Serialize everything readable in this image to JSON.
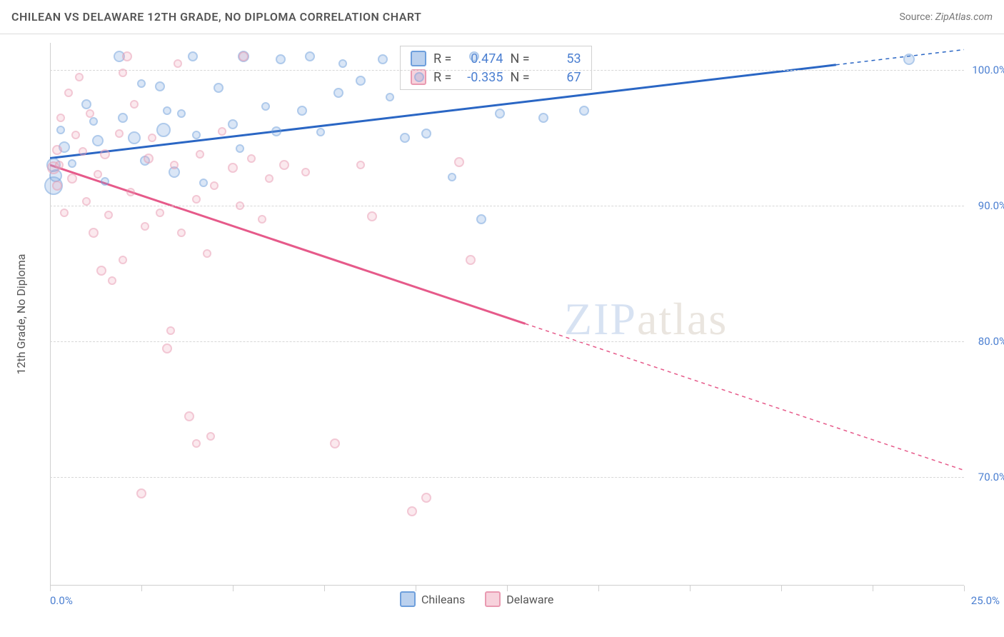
{
  "header": {
    "title": "CHILEAN VS DELAWARE 12TH GRADE, NO DIPLOMA CORRELATION CHART",
    "source_prefix": "Source:",
    "source_name": "ZipAtlas.com"
  },
  "watermark": {
    "part1": "ZIP",
    "part2": "atlas"
  },
  "chart": {
    "type": "scatter",
    "y_axis_label": "12th Grade, No Diploma",
    "xlim": [
      0,
      25
    ],
    "ylim": [
      62,
      102
    ],
    "x_tick_positions": [
      0,
      2.5,
      5,
      7.5,
      10,
      12.5,
      15,
      17.5,
      20,
      22.5,
      25
    ],
    "x_label_min": "0.0%",
    "x_label_max": "25.0%",
    "y_gridlines": [
      70,
      80,
      90,
      100
    ],
    "y_tick_labels": [
      "70.0%",
      "80.0%",
      "90.0%",
      "100.0%"
    ],
    "background": "#ffffff",
    "grid_color": "#d7d7d7",
    "axis_color": "#cfcfcf",
    "tick_label_color": "#4b7fd1",
    "text_color": "#555555",
    "series": [
      {
        "key": "a",
        "label": "Chileans",
        "color_fill": "rgba(120,164,222,0.5)",
        "color_stroke": "#6e9fdc",
        "trend_color": "#2a66c4",
        "trend_width": 3,
        "R": "0.474",
        "N": "53",
        "trend": {
          "x1": 0,
          "y1": 93.5,
          "x2": 25,
          "y2": 101.5,
          "dashed_from_x": 21.5
        },
        "points": [
          {
            "x": 0.1,
            "y": 91.5,
            "r": 13
          },
          {
            "x": 0.1,
            "y": 93,
            "r": 10
          },
          {
            "x": 0.15,
            "y": 92.2,
            "r": 9
          },
          {
            "x": 0.4,
            "y": 94.3,
            "r": 8
          },
          {
            "x": 0.3,
            "y": 95.6,
            "r": 6
          },
          {
            "x": 0.6,
            "y": 93.1,
            "r": 6
          },
          {
            "x": 1.0,
            "y": 97.5,
            "r": 7
          },
          {
            "x": 1.2,
            "y": 96.2,
            "r": 6
          },
          {
            "x": 1.3,
            "y": 94.8,
            "r": 8
          },
          {
            "x": 1.5,
            "y": 91.8,
            "r": 6
          },
          {
            "x": 1.9,
            "y": 101,
            "r": 8
          },
          {
            "x": 2.0,
            "y": 96.5,
            "r": 7
          },
          {
            "x": 2.3,
            "y": 95.0,
            "r": 9
          },
          {
            "x": 2.5,
            "y": 99.0,
            "r": 6
          },
          {
            "x": 2.6,
            "y": 93.3,
            "r": 7
          },
          {
            "x": 3.0,
            "y": 98.8,
            "r": 7
          },
          {
            "x": 3.1,
            "y": 95.6,
            "r": 10
          },
          {
            "x": 3.2,
            "y": 97.0,
            "r": 6
          },
          {
            "x": 3.4,
            "y": 92.5,
            "r": 8
          },
          {
            "x": 3.6,
            "y": 96.8,
            "r": 6
          },
          {
            "x": 3.9,
            "y": 101,
            "r": 7
          },
          {
            "x": 4.0,
            "y": 95.2,
            "r": 6
          },
          {
            "x": 4.2,
            "y": 91.7,
            "r": 6
          },
          {
            "x": 4.6,
            "y": 98.7,
            "r": 7
          },
          {
            "x": 5.0,
            "y": 96.0,
            "r": 7
          },
          {
            "x": 5.2,
            "y": 94.2,
            "r": 6
          },
          {
            "x": 5.3,
            "y": 101,
            "r": 8
          },
          {
            "x": 5.9,
            "y": 97.3,
            "r": 6
          },
          {
            "x": 6.2,
            "y": 95.5,
            "r": 7
          },
          {
            "x": 6.3,
            "y": 100.8,
            "r": 7
          },
          {
            "x": 6.9,
            "y": 97.0,
            "r": 7
          },
          {
            "x": 7.1,
            "y": 101,
            "r": 7
          },
          {
            "x": 7.4,
            "y": 95.4,
            "r": 6
          },
          {
            "x": 7.9,
            "y": 98.3,
            "r": 7
          },
          {
            "x": 8.0,
            "y": 100.5,
            "r": 6
          },
          {
            "x": 8.5,
            "y": 99.2,
            "r": 7
          },
          {
            "x": 9.1,
            "y": 100.8,
            "r": 7
          },
          {
            "x": 9.3,
            "y": 98.0,
            "r": 6
          },
          {
            "x": 9.7,
            "y": 95.0,
            "r": 7
          },
          {
            "x": 10.1,
            "y": 99.5,
            "r": 7
          },
          {
            "x": 10.3,
            "y": 95.3,
            "r": 7
          },
          {
            "x": 11.0,
            "y": 92.1,
            "r": 6
          },
          {
            "x": 11.6,
            "y": 101,
            "r": 7
          },
          {
            "x": 11.8,
            "y": 89.0,
            "r": 7
          },
          {
            "x": 12.3,
            "y": 96.8,
            "r": 7
          },
          {
            "x": 13.5,
            "y": 96.5,
            "r": 7
          },
          {
            "x": 14.6,
            "y": 97.0,
            "r": 7
          },
          {
            "x": 23.5,
            "y": 100.8,
            "r": 8
          }
        ]
      },
      {
        "key": "b",
        "label": "Delaware",
        "color_fill": "rgba(240,166,186,0.45)",
        "color_stroke": "#e99ab1",
        "trend_color": "#e65a8a",
        "trend_width": 3,
        "R": "-0.335",
        "N": "67",
        "trend": {
          "x1": 0,
          "y1": 93.0,
          "x2": 25,
          "y2": 70.5,
          "dashed_from_x": 13
        },
        "points": [
          {
            "x": 0.1,
            "y": 92.8,
            "r": 9
          },
          {
            "x": 0.2,
            "y": 94.1,
            "r": 7
          },
          {
            "x": 0.2,
            "y": 91.5,
            "r": 7
          },
          {
            "x": 0.25,
            "y": 93.0,
            "r": 6
          },
          {
            "x": 0.3,
            "y": 96.5,
            "r": 6
          },
          {
            "x": 0.5,
            "y": 98.3,
            "r": 6
          },
          {
            "x": 0.4,
            "y": 89.5,
            "r": 6
          },
          {
            "x": 0.6,
            "y": 92.0,
            "r": 7
          },
          {
            "x": 0.7,
            "y": 95.2,
            "r": 6
          },
          {
            "x": 0.8,
            "y": 99.5,
            "r": 6
          },
          {
            "x": 0.9,
            "y": 94.0,
            "r": 6
          },
          {
            "x": 1.0,
            "y": 90.3,
            "r": 6
          },
          {
            "x": 1.1,
            "y": 96.8,
            "r": 6
          },
          {
            "x": 1.2,
            "y": 88.0,
            "r": 7
          },
          {
            "x": 1.3,
            "y": 92.3,
            "r": 6
          },
          {
            "x": 1.4,
            "y": 85.2,
            "r": 7
          },
          {
            "x": 1.5,
            "y": 93.8,
            "r": 7
          },
          {
            "x": 1.6,
            "y": 89.3,
            "r": 6
          },
          {
            "x": 1.7,
            "y": 84.5,
            "r": 6
          },
          {
            "x": 1.9,
            "y": 95.3,
            "r": 6
          },
          {
            "x": 2.0,
            "y": 86.0,
            "r": 6
          },
          {
            "x": 2.0,
            "y": 99.8,
            "r": 6
          },
          {
            "x": 2.1,
            "y": 101,
            "r": 7
          },
          {
            "x": 2.2,
            "y": 91.0,
            "r": 6
          },
          {
            "x": 2.3,
            "y": 97.5,
            "r": 6
          },
          {
            "x": 2.5,
            "y": 68.8,
            "r": 7
          },
          {
            "x": 2.6,
            "y": 88.5,
            "r": 6
          },
          {
            "x": 2.7,
            "y": 93.5,
            "r": 7
          },
          {
            "x": 2.8,
            "y": 95.0,
            "r": 6
          },
          {
            "x": 3.0,
            "y": 89.5,
            "r": 6
          },
          {
            "x": 3.2,
            "y": 79.5,
            "r": 7
          },
          {
            "x": 3.3,
            "y": 80.8,
            "r": 6
          },
          {
            "x": 3.4,
            "y": 93.0,
            "r": 6
          },
          {
            "x": 3.5,
            "y": 100.5,
            "r": 6
          },
          {
            "x": 3.6,
            "y": 88.0,
            "r": 6
          },
          {
            "x": 3.8,
            "y": 74.5,
            "r": 7
          },
          {
            "x": 4.0,
            "y": 90.5,
            "r": 6
          },
          {
            "x": 4.0,
            "y": 72.5,
            "r": 6
          },
          {
            "x": 4.1,
            "y": 93.8,
            "r": 6
          },
          {
            "x": 4.3,
            "y": 86.5,
            "r": 6
          },
          {
            "x": 4.4,
            "y": 73.0,
            "r": 6
          },
          {
            "x": 4.5,
            "y": 91.5,
            "r": 6
          },
          {
            "x": 4.7,
            "y": 95.5,
            "r": 6
          },
          {
            "x": 5.0,
            "y": 92.8,
            "r": 7
          },
          {
            "x": 5.2,
            "y": 90.0,
            "r": 6
          },
          {
            "x": 5.3,
            "y": 101,
            "r": 7
          },
          {
            "x": 5.5,
            "y": 93.5,
            "r": 6
          },
          {
            "x": 5.8,
            "y": 89.0,
            "r": 6
          },
          {
            "x": 6.0,
            "y": 92.0,
            "r": 6
          },
          {
            "x": 6.4,
            "y": 93.0,
            "r": 7
          },
          {
            "x": 7.0,
            "y": 92.5,
            "r": 6
          },
          {
            "x": 7.8,
            "y": 72.5,
            "r": 7
          },
          {
            "x": 8.5,
            "y": 93.0,
            "r": 6
          },
          {
            "x": 8.8,
            "y": 89.2,
            "r": 7
          },
          {
            "x": 9.9,
            "y": 67.5,
            "r": 7
          },
          {
            "x": 10.3,
            "y": 68.5,
            "r": 7
          },
          {
            "x": 11.2,
            "y": 93.2,
            "r": 7
          },
          {
            "x": 11.5,
            "y": 86.0,
            "r": 7
          }
        ]
      }
    ],
    "stats_box": {
      "rows": [
        {
          "series": "a",
          "r_label": "R =",
          "r_val": "0.474",
          "n_label": "N =",
          "n_val": "53"
        },
        {
          "series": "b",
          "r_label": "R =",
          "r_val": "-0.335",
          "n_label": "N =",
          "n_val": "67"
        }
      ]
    },
    "legend_items": [
      {
        "series": "a",
        "label": "Chileans"
      },
      {
        "series": "b",
        "label": "Delaware"
      }
    ]
  }
}
